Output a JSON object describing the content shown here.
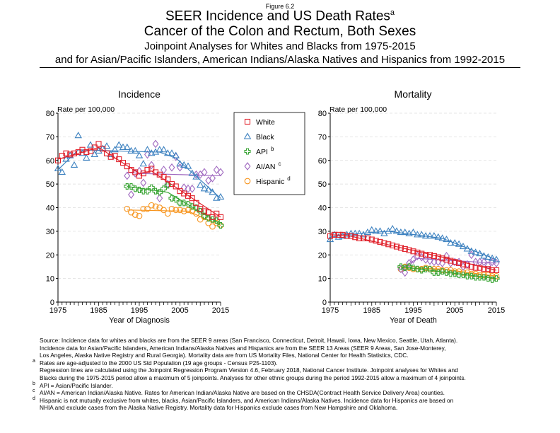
{
  "header": {
    "figure_label": "Figure 6.2",
    "title_line1": "SEER Incidence and US Death Rates",
    "title_line1_sup": "a",
    "title_line2": "Cancer of the Colon and Rectum, Both Sexes",
    "subtitle_line1": "Joinpoint Analyses for Whites and Blacks from 1975-2015",
    "subtitle_line2": "and for Asian/Pacific Islanders, American Indians/Alaska Natives and Hispanics from 1992-2015"
  },
  "colors": {
    "White": "#e0202a",
    "Black": "#3e82c0",
    "API": "#3aa535",
    "AI/AN": "#a069c0",
    "Hispanic": "#f7941d"
  },
  "legend": {
    "placement": "between panels, top",
    "items": [
      {
        "label": "White",
        "sup": "",
        "marker": "square"
      },
      {
        "label": "Black",
        "sup": "",
        "marker": "triangle"
      },
      {
        "label": "API",
        "sup": "b",
        "marker": "plus"
      },
      {
        "label": "AI/AN",
        "sup": "c",
        "marker": "diamond"
      },
      {
        "label": "Hispanic",
        "sup": "d",
        "marker": "circle"
      }
    ]
  },
  "chart_data": [
    {
      "type": "scatter",
      "title": "Incidence",
      "ylabel": "Rate per 100,000",
      "xlabel": "Year of Diagnosis",
      "xlim": [
        1975,
        2015
      ],
      "ylim": [
        0,
        80
      ],
      "xticks": [
        1975,
        1985,
        1995,
        2005,
        2015
      ],
      "yticks": [
        0,
        10,
        20,
        30,
        40,
        50,
        60,
        70,
        80
      ],
      "grid": "horizontal dashed",
      "series": [
        {
          "name": "White",
          "start": 1975,
          "values": [
            60,
            62,
            63,
            62.5,
            63,
            63.5,
            64.5,
            63.5,
            64,
            65.5,
            67,
            65,
            63,
            61.5,
            62,
            60.5,
            59,
            57.5,
            56,
            55,
            53.5,
            54.5,
            56,
            56.5,
            55,
            54,
            53,
            52,
            50,
            49,
            47,
            46,
            45,
            44,
            42,
            39.5,
            38.5,
            38,
            36,
            37.5,
            36
          ],
          "fit": [
            [
              1975,
              60.5
            ],
            [
              1985,
              65.5
            ],
            [
              1995,
              54.5
            ],
            [
              1998,
              55.5
            ],
            [
              2008,
              44
            ],
            [
              2015,
              36
            ]
          ]
        },
        {
          "name": "Black",
          "start": 1975,
          "values": [
            56.5,
            55,
            60.5,
            62,
            58,
            70.5,
            63,
            61,
            66.5,
            62.5,
            64,
            65,
            66,
            62.5,
            64.5,
            66.5,
            65.5,
            65.5,
            64,
            64,
            62,
            58.5,
            64.5,
            63,
            63.5,
            64.5,
            64.5,
            63,
            63,
            62,
            58.5,
            58,
            57.5,
            54.5,
            53,
            49.5,
            48,
            47.5,
            46.5,
            44,
            44.5
          ],
          "fit": [
            [
              1975,
              56
            ],
            [
              1980,
              64.5
            ],
            [
              2000,
              63.5
            ],
            [
              2004,
              61
            ],
            [
              2015,
              44
            ]
          ]
        },
        {
          "name": "API",
          "start": 1992,
          "values": [
            49,
            49,
            48,
            47.5,
            47,
            47,
            48.5,
            47,
            46.5,
            48,
            49.5,
            44,
            43.5,
            42,
            42,
            41.5,
            40.5,
            40,
            38.5,
            36.5,
            35.5,
            35,
            34.5,
            32.5
          ],
          "fit": [
            [
              1992,
              49
            ],
            [
              2002,
              46.5
            ],
            [
              2015,
              33
            ]
          ]
        },
        {
          "name": "AI/AN",
          "start": 1992,
          "values": [
            53.5,
            45.5,
            54.5,
            55.5,
            50.5,
            62.5,
            58,
            67,
            44,
            56,
            50,
            57,
            61.5,
            57,
            48.5,
            48,
            48,
            54,
            54,
            55,
            51.5,
            52.5,
            56,
            55
          ],
          "fit": [
            [
              1992,
              55
            ],
            [
              1995,
              54.5
            ],
            [
              2015,
              53.5
            ]
          ]
        },
        {
          "name": "Hispanic",
          "start": 1992,
          "values": [
            39.5,
            38,
            37,
            36.5,
            39.5,
            39.5,
            41,
            40.5,
            40,
            39,
            37.5,
            39.5,
            39,
            39,
            38.5,
            39,
            38.5,
            37.5,
            35,
            36,
            33.5,
            32,
            33.5,
            32.5
          ],
          "fit": [
            [
              1992,
              39
            ],
            [
              2007,
              38.5
            ],
            [
              2015,
              32.5
            ]
          ]
        }
      ]
    },
    {
      "type": "scatter",
      "title": "Mortality",
      "ylabel": "Rate per 100,000",
      "xlabel": "Year of Death",
      "xlim": [
        1975,
        2015
      ],
      "ylim": [
        0,
        80
      ],
      "xticks": [
        1975,
        1985,
        1995,
        2005,
        2015
      ],
      "yticks": [
        0,
        10,
        20,
        30,
        40,
        50,
        60,
        70,
        80
      ],
      "grid": "horizontal dashed",
      "series": [
        {
          "name": "White",
          "start": 1975,
          "values": [
            28,
            28.5,
            28.5,
            28.5,
            28,
            28,
            27.5,
            27,
            27,
            27,
            26.5,
            26,
            25.5,
            25,
            24.5,
            24,
            23.5,
            23,
            22.5,
            22,
            21.5,
            21,
            20.5,
            20,
            20,
            19.5,
            19,
            18.5,
            18,
            17.5,
            17,
            16.5,
            16,
            15.5,
            15,
            14.5,
            14.5,
            14,
            14,
            13.5,
            13.5
          ],
          "fit": [
            [
              1975,
              28.5
            ],
            [
              1979,
              28.3
            ],
            [
              2002,
              19
            ],
            [
              2015,
              13.5
            ]
          ]
        },
        {
          "name": "Black",
          "start": 1975,
          "values": [
            26.5,
            28.5,
            27.5,
            28,
            28.5,
            29,
            29,
            29,
            28.5,
            29.5,
            30.5,
            30,
            30,
            29,
            30,
            31,
            30,
            29.5,
            29.5,
            29,
            29.5,
            28.5,
            28.5,
            28,
            28,
            28,
            27.5,
            27,
            26.5,
            25,
            25,
            24.5,
            23.5,
            22.5,
            21.5,
            21,
            20.5,
            19.5,
            19,
            18.5,
            18
          ],
          "fit": [
            [
              1975,
              27.5
            ],
            [
              1978,
              28.5
            ],
            [
              1989,
              30
            ],
            [
              2002,
              27
            ],
            [
              2015,
              18
            ]
          ]
        },
        {
          "name": "API",
          "start": 1992,
          "values": [
            15,
            14.5,
            15,
            14.5,
            14,
            13.5,
            14,
            14,
            12.5,
            12.5,
            13,
            12.5,
            12,
            12,
            11.5,
            11.5,
            11,
            11,
            10.5,
            10.5,
            10.5,
            10,
            9.5,
            10
          ],
          "fit": [
            [
              1992,
              15
            ],
            [
              2015,
              10
            ]
          ]
        },
        {
          "name": "AI/AN",
          "start": 1992,
          "values": [
            14,
            12.5,
            16.5,
            18,
            19.5,
            19,
            18,
            17.5,
            17,
            17,
            16.5,
            19.5,
            16.5,
            17,
            17,
            15,
            16,
            20,
            17,
            17,
            17,
            15.5,
            17,
            16.5
          ],
          "fit": [
            [
              1992,
              14
            ],
            [
              1996,
              18.5
            ],
            [
              2015,
              16.5
            ]
          ]
        },
        {
          "name": "Hispanic",
          "start": 1992,
          "values": [
            14,
            15,
            14.5,
            14,
            14,
            14,
            14.5,
            14,
            14,
            14,
            13.5,
            13.5,
            13.5,
            13,
            13,
            12.5,
            12.5,
            12,
            12,
            11.5,
            11.5,
            11.5,
            11,
            11
          ],
          "fit": [
            [
              1992,
              14.5
            ],
            [
              2002,
              14
            ],
            [
              2015,
              11
            ]
          ]
        }
      ]
    }
  ],
  "footnotes": [
    {
      "mark": "",
      "text": "Source:  Incidence data for whites and blacks are from the SEER 9 areas (San Francisco, Connecticut, Detroit, Hawaii, Iowa, New Mexico, Seattle, Utah, Atlanta)."
    },
    {
      "mark": "",
      "text": "Incidence data for Asian/Pacific Islanders, American Indians/Alaska Natives and Hispanics are from the SEER 13 Areas (SEER 9 Areas, San Jose-Monterey,"
    },
    {
      "mark": "",
      "text": "Los Angeles, Alaska Native Registry and Rural Georgia).  Mortality data are from US Mortality Files, National Center for Health Statistics, CDC."
    },
    {
      "mark": "a",
      "text": "Rates are age-adjusted to the 2000 US Std Population (19 age groups - Census P25-1103)."
    },
    {
      "mark": "",
      "text": "Regression lines are calculated using the Joinpoint Regression Program Version 4.6, February 2018, National Cancer Institute.  Joinpoint analyses for Whites and"
    },
    {
      "mark": "",
      "text": "Blacks during the 1975-2015 period allow a maximum of 5 joinpoints. Analyses for other ethnic groups during the period 1992-2015 allow a maximum of 4 joinpoints."
    },
    {
      "mark": "b",
      "text": "API = Asian/Pacific Islander."
    },
    {
      "mark": "c",
      "text": "AI/AN = American Indian/Alaska Native.  Rates for American Indian/Alaska Native are based on the CHSDA(Contract Health Service Delivery Area) counties."
    },
    {
      "mark": "d",
      "text": "Hispanic is not mutually exclusive from whites, blacks, Asian/Pacific Islanders, and American Indians/Alaska Natives.  Incidence data for Hispanics are based on"
    },
    {
      "mark": "",
      "text": "NHIA and exclude cases from the Alaska Native Registry.  Mortality data for Hispanics exclude cases from New Hampshire and Oklahoma."
    }
  ]
}
